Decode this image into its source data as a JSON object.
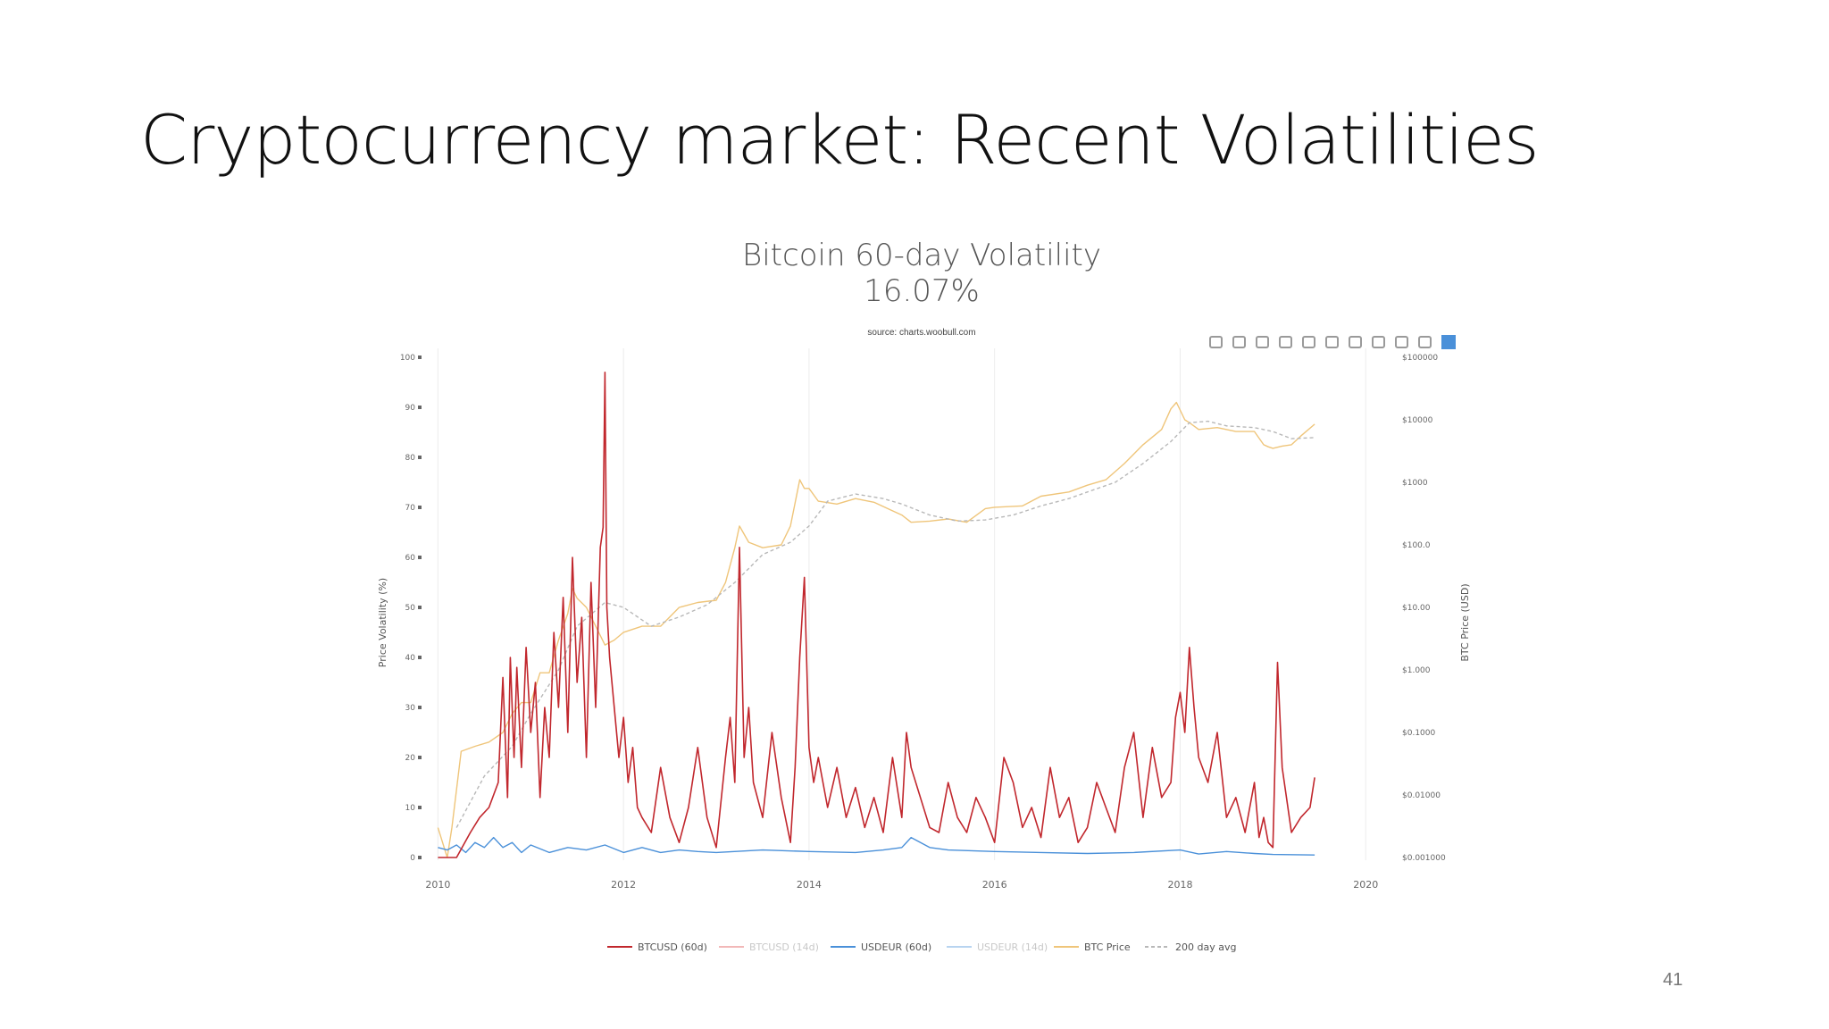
{
  "slide": {
    "title": "Cryptocurrency market: Recent Volatilities",
    "page_number": "41"
  },
  "toolbar": {
    "icons": [
      "camera-icon",
      "zoom-icon",
      "pan-icon",
      "zoom-in-icon",
      "zoom-out-icon",
      "autoscale-icon",
      "home-icon",
      "spike-lines-icon",
      "hover-closest-icon",
      "hover-compare-icon",
      "plotly-logo-icon"
    ]
  },
  "colors": {
    "btcusd60": "#c1272d",
    "btcusd14": "#f2b8b8",
    "usdeur60": "#4a90d9",
    "usdeur14": "#b8d4f0",
    "btcprice": "#efc57a",
    "avg200": "#b8b8b8",
    "grid": "#ececec",
    "text": "#555555"
  },
  "chart_data": {
    "type": "line",
    "title": "Bitcoin 60-day Volatility",
    "subtitle": "16.07%",
    "source": "source: charts.woobull.com",
    "xlabel": "",
    "ylabel": "Price Volatility (%)",
    "y2label": "BTC Price (USD)",
    "xlim": [
      2009.9,
      2020.2
    ],
    "ylim": [
      0,
      100
    ],
    "y2_log_range": [
      0.001,
      100000
    ],
    "y2_scale": "log",
    "grid": "vertical",
    "legend_position": "bottom",
    "x_ticks": [
      "2010",
      "2012",
      "2014",
      "2016",
      "2018",
      "2020"
    ],
    "y_ticks": [
      "0",
      "10",
      "20",
      "30",
      "40",
      "50",
      "60",
      "70",
      "80",
      "90",
      "100"
    ],
    "y2_ticks": [
      "$0.001000",
      "$0.01000",
      "$0.1000",
      "$1.000",
      "$10.00",
      "$100.0",
      "$1000",
      "$10000",
      "$100000"
    ],
    "legend": [
      "BTCUSD (60d)",
      "BTCUSD (14d)",
      "USDEUR (60d)",
      "USDEUR (14d)",
      "BTC Price",
      "200 day avg"
    ],
    "series": [
      {
        "name": "BTCUSD (60d)",
        "axis": "y",
        "x": [
          2010.0,
          2010.2,
          2010.35,
          2010.45,
          2010.55,
          2010.65,
          2010.7,
          2010.75,
          2010.78,
          2010.82,
          2010.85,
          2010.9,
          2010.95,
          2011.0,
          2011.05,
          2011.1,
          2011.15,
          2011.2,
          2011.25,
          2011.3,
          2011.35,
          2011.4,
          2011.45,
          2011.5,
          2011.55,
          2011.6,
          2011.65,
          2011.7,
          2011.75,
          2011.78,
          2011.8,
          2011.82,
          2011.85,
          2011.9,
          2011.95,
          2012.0,
          2012.05,
          2012.1,
          2012.15,
          2012.2,
          2012.3,
          2012.4,
          2012.5,
          2012.6,
          2012.7,
          2012.8,
          2012.9,
          2013.0,
          2013.1,
          2013.15,
          2013.2,
          2013.25,
          2013.3,
          2013.35,
          2013.4,
          2013.5,
          2013.6,
          2013.7,
          2013.8,
          2013.85,
          2013.9,
          2013.95,
          2014.0,
          2014.05,
          2014.1,
          2014.2,
          2014.3,
          2014.4,
          2014.5,
          2014.6,
          2014.7,
          2014.8,
          2014.9,
          2015.0,
          2015.05,
          2015.1,
          2015.2,
          2015.3,
          2015.4,
          2015.5,
          2015.6,
          2015.7,
          2015.8,
          2015.9,
          2016.0,
          2016.1,
          2016.2,
          2016.3,
          2016.4,
          2016.5,
          2016.6,
          2016.7,
          2016.8,
          2016.9,
          2017.0,
          2017.1,
          2017.2,
          2017.3,
          2017.4,
          2017.5,
          2017.6,
          2017.7,
          2017.8,
          2017.9,
          2017.95,
          2018.0,
          2018.05,
          2018.1,
          2018.15,
          2018.2,
          2018.3,
          2018.4,
          2018.5,
          2018.6,
          2018.7,
          2018.8,
          2018.85,
          2018.9,
          2018.95,
          2019.0,
          2019.05,
          2019.1,
          2019.2,
          2019.3,
          2019.4,
          2019.45
        ],
        "y": [
          0,
          0,
          5,
          8,
          10,
          15,
          36,
          12,
          40,
          20,
          38,
          18,
          42,
          25,
          35,
          12,
          30,
          20,
          45,
          30,
          52,
          25,
          60,
          35,
          48,
          20,
          55,
          30,
          62,
          66,
          97,
          50,
          40,
          30,
          20,
          28,
          15,
          22,
          10,
          8,
          5,
          18,
          8,
          3,
          10,
          22,
          8,
          2,
          20,
          28,
          15,
          62,
          20,
          30,
          15,
          8,
          25,
          12,
          3,
          18,
          40,
          56,
          22,
          15,
          20,
          10,
          18,
          8,
          14,
          6,
          12,
          5,
          20,
          8,
          25,
          18,
          12,
          6,
          5,
          15,
          8,
          5,
          12,
          8,
          3,
          20,
          15,
          6,
          10,
          4,
          18,
          8,
          12,
          3,
          6,
          15,
          10,
          5,
          18,
          25,
          8,
          22,
          12,
          15,
          28,
          33,
          25,
          42,
          30,
          20,
          15,
          25,
          8,
          12,
          5,
          15,
          4,
          8,
          3,
          2,
          39,
          18,
          5,
          8,
          10,
          16
        ],
        "color_key": "btcusd60"
      },
      {
        "name": "USDEUR (60d)",
        "axis": "y",
        "x": [
          2010.0,
          2010.1,
          2010.2,
          2010.3,
          2010.4,
          2010.5,
          2010.6,
          2010.7,
          2010.8,
          2010.9,
          2011.0,
          2011.2,
          2011.4,
          2011.6,
          2011.8,
          2012.0,
          2012.2,
          2012.4,
          2012.6,
          2012.8,
          2013.0,
          2013.5,
          2014.0,
          2014.5,
          2014.8,
          2015.0,
          2015.1,
          2015.3,
          2015.5,
          2016.0,
          2016.5,
          2017.0,
          2017.5,
          2018.0,
          2018.2,
          2018.5,
          2018.8,
          2019.0,
          2019.45
        ],
        "y": [
          2,
          1.5,
          2.5,
          1,
          3,
          2,
          4,
          2,
          3,
          1,
          2.5,
          1,
          2,
          1.5,
          2.5,
          1,
          2,
          1,
          1.5,
          1.2,
          1,
          1.5,
          1.2,
          1,
          1.5,
          2,
          4,
          2,
          1.5,
          1.2,
          1,
          0.8,
          1,
          1.5,
          0.7,
          1.2,
          0.8,
          0.6,
          0.5
        ],
        "color_key": "usdeur60"
      },
      {
        "name": "BTC Price",
        "axis": "y2",
        "x": [
          2010.0,
          2010.1,
          2010.15,
          2010.25,
          2010.4,
          2010.55,
          2010.7,
          2010.8,
          2010.9,
          2011.0,
          2011.1,
          2011.2,
          2011.3,
          2011.4,
          2011.45,
          2011.5,
          2011.6,
          2011.7,
          2011.8,
          2011.9,
          2012.0,
          2012.2,
          2012.4,
          2012.6,
          2012.8,
          2013.0,
          2013.1,
          2013.2,
          2013.25,
          2013.35,
          2013.5,
          2013.7,
          2013.8,
          2013.9,
          2013.95,
          2014.0,
          2014.1,
          2014.3,
          2014.5,
          2014.7,
          2014.9,
          2015.0,
          2015.1,
          2015.3,
          2015.5,
          2015.7,
          2015.9,
          2016.0,
          2016.3,
          2016.5,
          2016.8,
          2017.0,
          2017.2,
          2017.4,
          2017.6,
          2017.8,
          2017.9,
          2017.96,
          2018.05,
          2018.1,
          2018.2,
          2018.4,
          2018.6,
          2018.8,
          2018.9,
          2018.95,
          2019.0,
          2019.1,
          2019.2,
          2019.3,
          2019.45
        ],
        "y": [
          0.003,
          0.001,
          0.003,
          0.05,
          0.06,
          0.07,
          0.1,
          0.2,
          0.3,
          0.3,
          0.9,
          0.9,
          3,
          8,
          20,
          14,
          10,
          5,
          2.5,
          3,
          4,
          5,
          5,
          10,
          12,
          13,
          25,
          90,
          200,
          110,
          90,
          100,
          200,
          1100,
          800,
          800,
          500,
          450,
          550,
          480,
          350,
          300,
          230,
          240,
          260,
          230,
          380,
          400,
          420,
          600,
          700,
          900,
          1100,
          2000,
          4000,
          7000,
          15000,
          19000,
          10000,
          9000,
          7000,
          7500,
          6500,
          6500,
          4000,
          3700,
          3500,
          3800,
          4000,
          5500,
          8500
        ],
        "color_key": "btcprice"
      },
      {
        "name": "200 day avg",
        "axis": "y2",
        "x": [
          2010.2,
          2010.5,
          2010.8,
          2011.0,
          2011.3,
          2011.5,
          2011.8,
          2012.0,
          2012.3,
          2012.6,
          2012.9,
          2013.2,
          2013.5,
          2013.8,
          2014.0,
          2014.2,
          2014.5,
          2014.8,
          2015.0,
          2015.3,
          2015.6,
          2015.9,
          2016.2,
          2016.5,
          2016.8,
          2017.0,
          2017.3,
          2017.6,
          2017.9,
          2018.1,
          2018.3,
          2018.5,
          2018.8,
          2019.0,
          2019.2,
          2019.45
        ],
        "y": [
          0.003,
          0.02,
          0.06,
          0.2,
          1,
          5,
          12,
          10,
          5,
          7,
          11,
          25,
          70,
          110,
          200,
          500,
          650,
          550,
          450,
          300,
          240,
          250,
          300,
          420,
          550,
          700,
          1000,
          2000,
          4500,
          9000,
          9500,
          8000,
          7500,
          6500,
          5000,
          5200
        ],
        "color_key": "avg200"
      }
    ]
  }
}
